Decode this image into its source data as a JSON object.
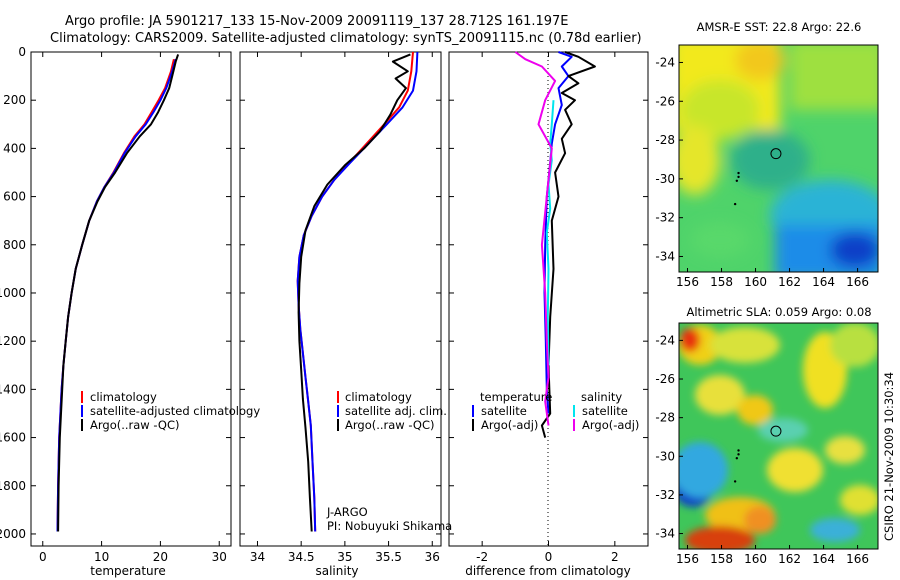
{
  "figure": {
    "title_line1": "Argo profile: JA 5901217_133 15-Nov-2009 20091119_137 28.712S 161.197E",
    "title_line2": "Climatology: CARS2009. Satellite-adjusted climatology: synTS_20091115.nc (0.78d earlier)",
    "credit": "CSIRO 21-Nov-2009 10:30:34"
  },
  "colors": {
    "climatology": "#ff0000",
    "satellite": "#0000ff",
    "argo": "#000000",
    "sal_satellite": "#00e5ee",
    "sal_argo": "#ee00ee"
  },
  "chart_data": [
    {
      "type": "line",
      "name": "temperature",
      "xlabel": "temperature",
      "ylabel": "",
      "xlim": [
        -2,
        32
      ],
      "ylim": [
        2050,
        0
      ],
      "xticks": [
        0,
        10,
        20,
        30
      ],
      "yticks": [
        0,
        200,
        400,
        600,
        800,
        1000,
        1200,
        1400,
        1600,
        1800,
        2000
      ],
      "legend": [
        "climatology",
        "satellite-adjusted climatology",
        "Argo(..raw -QC)"
      ],
      "series": [
        {
          "name": "climatology",
          "color_key": "climatology",
          "x": [
            22.3,
            21.8,
            20.8,
            19.7,
            18.5,
            17.3,
            15.6,
            13.8,
            12.0,
            10.5,
            9.2,
            7.9,
            6.7,
            5.6,
            4.9,
            4.3,
            3.9,
            3.5,
            3.2,
            3.0,
            2.8,
            2.6,
            2.5
          ],
          "y": [
            30,
            80,
            150,
            200,
            250,
            300,
            350,
            420,
            500,
            560,
            620,
            700,
            800,
            900,
            1000,
            1100,
            1200,
            1300,
            1400,
            1500,
            1600,
            1800,
            1990
          ]
        },
        {
          "name": "satellite-adjusted climatology",
          "color_key": "satellite",
          "x": [
            22.6,
            22.0,
            21.0,
            20.0,
            18.8,
            17.5,
            15.8,
            13.9,
            12.1,
            10.5,
            9.2,
            7.9,
            6.7,
            5.6,
            4.9,
            4.3,
            3.9,
            3.5,
            3.2,
            3.0,
            2.8,
            2.6,
            2.5
          ],
          "y": [
            30,
            80,
            150,
            200,
            250,
            300,
            350,
            420,
            500,
            560,
            620,
            700,
            800,
            900,
            1000,
            1100,
            1200,
            1300,
            1400,
            1500,
            1600,
            1800,
            1990
          ]
        },
        {
          "name": "Argo(..raw -QC)",
          "color_key": "argo",
          "x": [
            23.0,
            22.6,
            22.2,
            21.5,
            20.6,
            19.6,
            18.4,
            16.5,
            14.3,
            12.3,
            10.6,
            9.3,
            7.9,
            6.7,
            5.6,
            4.9,
            4.3,
            3.9,
            3.5,
            3.3,
            3.1,
            2.9,
            2.7,
            2.6
          ],
          "y": [
            10,
            40,
            80,
            150,
            200,
            250,
            300,
            350,
            420,
            500,
            560,
            620,
            700,
            800,
            900,
            1000,
            1100,
            1200,
            1300,
            1400,
            1500,
            1600,
            1800,
            1990
          ]
        }
      ]
    },
    {
      "type": "line",
      "name": "salinity",
      "xlabel": "salinity",
      "ylabel": "",
      "xlim": [
        33.8,
        36.1
      ],
      "ylim": [
        2050,
        0
      ],
      "xticks": [
        34,
        34.5,
        35,
        35.5,
        36
      ],
      "yticks": [
        0,
        200,
        400,
        600,
        800,
        1000,
        1200,
        1400,
        1600,
        1800,
        2000
      ],
      "legend": [
        "climatology",
        "satellite adj. clim.",
        "Argo(..raw -QC)"
      ],
      "annotation_line1": "J-ARGO",
      "annotation_line2": "PI: Nobuyuki Shikama",
      "series": [
        {
          "name": "climatology",
          "color_key": "climatology",
          "x": [
            35.78,
            35.76,
            35.72,
            35.62,
            35.45,
            35.25,
            35.05,
            34.88,
            34.74,
            34.62,
            34.53,
            34.48,
            34.46,
            34.47,
            34.49,
            34.52,
            34.55,
            34.58,
            34.61,
            34.63,
            34.65,
            34.66
          ],
          "y": [
            0,
            80,
            160,
            230,
            300,
            380,
            460,
            530,
            600,
            680,
            760,
            850,
            950,
            1050,
            1150,
            1250,
            1350,
            1450,
            1550,
            1700,
            1850,
            1990
          ]
        },
        {
          "name": "satellite adj. clim.",
          "color_key": "satellite",
          "x": [
            35.83,
            35.82,
            35.78,
            35.66,
            35.48,
            35.27,
            35.06,
            34.88,
            34.74,
            34.62,
            34.53,
            34.48,
            34.46,
            34.47,
            34.49,
            34.52,
            34.55,
            34.58,
            34.61,
            34.63,
            34.65,
            34.66
          ],
          "y": [
            0,
            80,
            160,
            230,
            300,
            380,
            460,
            530,
            600,
            680,
            760,
            850,
            950,
            1050,
            1150,
            1250,
            1350,
            1450,
            1550,
            1700,
            1850,
            1990
          ]
        },
        {
          "name": "Argo(..raw -QC)",
          "color_key": "argo",
          "x": [
            35.75,
            35.55,
            35.72,
            35.58,
            35.7,
            35.6,
            35.52,
            35.4,
            35.22,
            35.0,
            34.8,
            34.65,
            34.55,
            34.5,
            34.48,
            34.47,
            34.48,
            34.5,
            34.52,
            34.55,
            34.58,
            34.6,
            34.62
          ],
          "y": [
            10,
            40,
            80,
            110,
            150,
            200,
            260,
            330,
            400,
            470,
            550,
            640,
            740,
            850,
            960,
            1080,
            1200,
            1320,
            1440,
            1560,
            1700,
            1850,
            1990
          ]
        }
      ]
    },
    {
      "type": "line",
      "name": "difference",
      "xlabel": "difference from climatology",
      "ylabel": "",
      "xlim": [
        -3,
        3
      ],
      "ylim": [
        2050,
        0
      ],
      "xticks": [
        -2,
        0,
        2
      ],
      "yticks": [
        0,
        200,
        400,
        600,
        800,
        1000,
        1200,
        1400,
        1600,
        1800,
        2000
      ],
      "legend_temperature_title": "temperature",
      "legend_salinity_title": "salinity",
      "legend_temperature": [
        "satellite",
        "Argo(-adj)"
      ],
      "legend_salinity": [
        "satellite",
        "Argo(-adj)"
      ],
      "series": [
        {
          "name": "temperature satellite",
          "color_key": "satellite",
          "x": [
            0.3,
            0.7,
            0.4,
            0.6,
            0.3,
            0.4,
            0.2,
            0.1,
            0.05,
            -0.05,
            -0.1,
            -0.12,
            -0.08,
            -0.05,
            0.0
          ],
          "y": [
            0,
            20,
            60,
            100,
            150,
            220,
            300,
            380,
            460,
            600,
            800,
            1000,
            1200,
            1400,
            1500
          ]
        },
        {
          "name": "temperature Argo(-adj)",
          "color_key": "argo",
          "x": [
            0.5,
            0.9,
            1.4,
            0.6,
            0.9,
            0.4,
            0.8,
            0.5,
            0.7,
            0.4,
            0.5,
            0.2,
            0.3,
            0.1,
            0.15,
            0.05,
            0.0,
            0.05,
            -0.2,
            -0.1
          ],
          "y": [
            0,
            20,
            60,
            100,
            130,
            170,
            200,
            240,
            300,
            360,
            420,
            500,
            600,
            700,
            900,
            1100,
            1300,
            1500,
            1550,
            1600
          ]
        },
        {
          "name": "salinity satellite",
          "color_key": "sal_satellite",
          "x": [
            0.15,
            0.1,
            0.05,
            0.1,
            0.0,
            0.05,
            -0.05,
            0.0,
            -0.02,
            0.0
          ],
          "y": [
            200,
            300,
            380,
            450,
            550,
            650,
            750,
            900,
            1100,
            1300
          ]
        },
        {
          "name": "salinity Argo(-adj)",
          "color_key": "sal_argo",
          "x": [
            -1.0,
            -0.7,
            -0.2,
            0.2,
            -0.1,
            -0.3,
            0.1,
            -0.05,
            -0.2,
            -0.1,
            -0.05,
            0.0,
            -0.1,
            0.0
          ],
          "y": [
            0,
            30,
            60,
            120,
            200,
            300,
            400,
            600,
            800,
            1000,
            1200,
            1350,
            1450,
            1550
          ]
        }
      ]
    },
    {
      "type": "heatmap",
      "name": "sst",
      "title": "AMSR-E SST: 22.8 Argo: 22.6",
      "xlim": [
        155.5,
        167.2
      ],
      "ylim": [
        -34.8,
        -23.1
      ],
      "xticks": [
        156,
        158,
        160,
        162,
        164,
        166
      ],
      "yticks": [
        -24,
        -26,
        -28,
        -30,
        -32,
        -34
      ],
      "marker": {
        "x": 161.2,
        "y": -28.7
      },
      "track": {
        "x": [
          159,
          159,
          158.9,
          158.8
        ],
        "y": [
          -29.7,
          -29.9,
          -30.1,
          -31.3
        ]
      }
    },
    {
      "type": "heatmap",
      "name": "sla",
      "title": "Altimetric SLA: 0.059 Argo: 0.08",
      "xlim": [
        155.5,
        167.2
      ],
      "ylim": [
        -34.8,
        -23.1
      ],
      "xticks": [
        156,
        158,
        160,
        162,
        164,
        166
      ],
      "yticks": [
        -24,
        -26,
        -28,
        -30,
        -32,
        -34
      ],
      "marker": {
        "x": 161.2,
        "y": -28.7
      },
      "track": {
        "x": [
          159,
          159,
          158.9,
          158.8
        ],
        "y": [
          -29.7,
          -29.9,
          -30.1,
          -31.3
        ]
      }
    }
  ]
}
